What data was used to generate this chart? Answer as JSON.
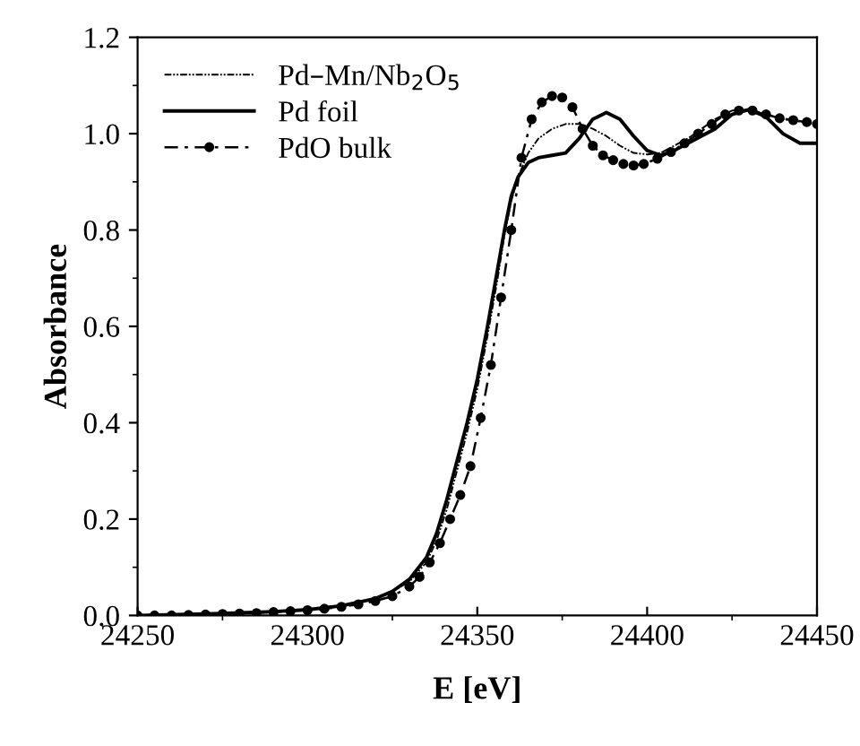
{
  "chart_data": {
    "type": "line",
    "xlabel": "E [eV]",
    "ylabel": "Absorbance",
    "xlim": [
      24250,
      24450
    ],
    "xticks": [
      24250,
      24300,
      24350,
      24400,
      24450
    ],
    "ylim": [
      0.0,
      1.2
    ],
    "yticks": [
      {
        "value": 0.0,
        "label": "0.0"
      },
      {
        "value": 0.2,
        "label": "0.2"
      },
      {
        "value": 0.4,
        "label": "0.4"
      },
      {
        "value": 0.6,
        "label": "0.6"
      },
      {
        "value": 0.8,
        "label": "0.8"
      },
      {
        "value": 1.0,
        "label": "1.0"
      },
      {
        "value": 1.2,
        "label": "1.2"
      }
    ],
    "grid": false,
    "legend": "top left",
    "series": [
      {
        "name": "Pd–Mn/Nb$_{2}$O$_{5}$",
        "color": "#000000",
        "line_style": "dotted",
        "marker": "none",
        "x": [
          24250,
          24270,
          24290,
          24300,
          24310,
          24320,
          24325,
          24330,
          24335,
          24338,
          24341,
          24344,
          24347,
          24350,
          24353,
          24356,
          24358,
          24360,
          24362,
          24365,
          24368,
          24372,
          24376,
          24380,
          24384,
          24388,
          24392,
          24396,
          24400,
          24404,
          24408,
          24412,
          24416,
          24420,
          24425,
          24430,
          24435,
          24440,
          24445,
          24450
        ],
        "values": [
          0,
          0.003,
          0.008,
          0.012,
          0.02,
          0.035,
          0.05,
          0.07,
          0.11,
          0.155,
          0.22,
          0.3,
          0.38,
          0.47,
          0.58,
          0.7,
          0.79,
          0.86,
          0.91,
          0.96,
          0.99,
          1.01,
          1.02,
          1.02,
          1.01,
          0.995,
          0.975,
          0.96,
          0.957,
          0.96,
          0.975,
          0.99,
          1.01,
          1.03,
          1.048,
          1.05,
          1.04,
          1.03,
          1.025,
          1.02
        ]
      },
      {
        "name": "Pd foil",
        "color": "#000000",
        "line_style": "solid",
        "marker": "none",
        "x": [
          24250,
          24270,
          24290,
          24300,
          24310,
          24320,
          24325,
          24330,
          24335,
          24338,
          24341,
          24344,
          24347,
          24350,
          24353,
          24356,
          24358,
          24360,
          24362,
          24365,
          24368,
          24372,
          24376,
          24380,
          24384,
          24388,
          24392,
          24396,
          24400,
          24404,
          24408,
          24412,
          24416,
          24420,
          24425,
          24430,
          24435,
          24440,
          24445,
          24450
        ],
        "values": [
          0,
          0.003,
          0.008,
          0.012,
          0.02,
          0.035,
          0.05,
          0.075,
          0.12,
          0.17,
          0.24,
          0.32,
          0.4,
          0.49,
          0.6,
          0.72,
          0.8,
          0.87,
          0.91,
          0.94,
          0.95,
          0.955,
          0.96,
          0.99,
          1.03,
          1.044,
          1.03,
          0.995,
          0.965,
          0.955,
          0.965,
          0.98,
          0.995,
          1.01,
          1.04,
          1.05,
          1.035,
          1.0,
          0.98,
          0.98
        ]
      },
      {
        "name": "PdO bulk",
        "color": "#000000",
        "line_style": "dashed",
        "marker": "circle",
        "x": [
          24250,
          24255,
          24260,
          24265,
          24270,
          24275,
          24280,
          24285,
          24290,
          24295,
          24300,
          24305,
          24310,
          24315,
          24320,
          24325,
          24330,
          24333,
          24336,
          24339,
          24342,
          24345,
          24348,
          24351,
          24354,
          24357,
          24360,
          24363,
          24366,
          24369,
          24372,
          24375,
          24378,
          24381,
          24384,
          24387,
          24390,
          24393,
          24396,
          24399,
          24403,
          24407,
          24411,
          24415,
          24419,
          24423,
          24427,
          24431,
          24435,
          24439,
          24443,
          24447,
          24450
        ],
        "values": [
          0,
          0,
          0,
          0.001,
          0.002,
          0.003,
          0.004,
          0.005,
          0.007,
          0.009,
          0.011,
          0.014,
          0.018,
          0.023,
          0.03,
          0.04,
          0.06,
          0.08,
          0.11,
          0.15,
          0.2,
          0.25,
          0.31,
          0.41,
          0.52,
          0.66,
          0.8,
          0.95,
          1.03,
          1.065,
          1.078,
          1.075,
          1.055,
          1.01,
          0.975,
          0.955,
          0.945,
          0.937,
          0.934,
          0.937,
          0.948,
          0.962,
          0.98,
          1.0,
          1.02,
          1.04,
          1.048,
          1.048,
          1.04,
          1.032,
          1.028,
          1.024,
          1.02
        ]
      }
    ]
  }
}
